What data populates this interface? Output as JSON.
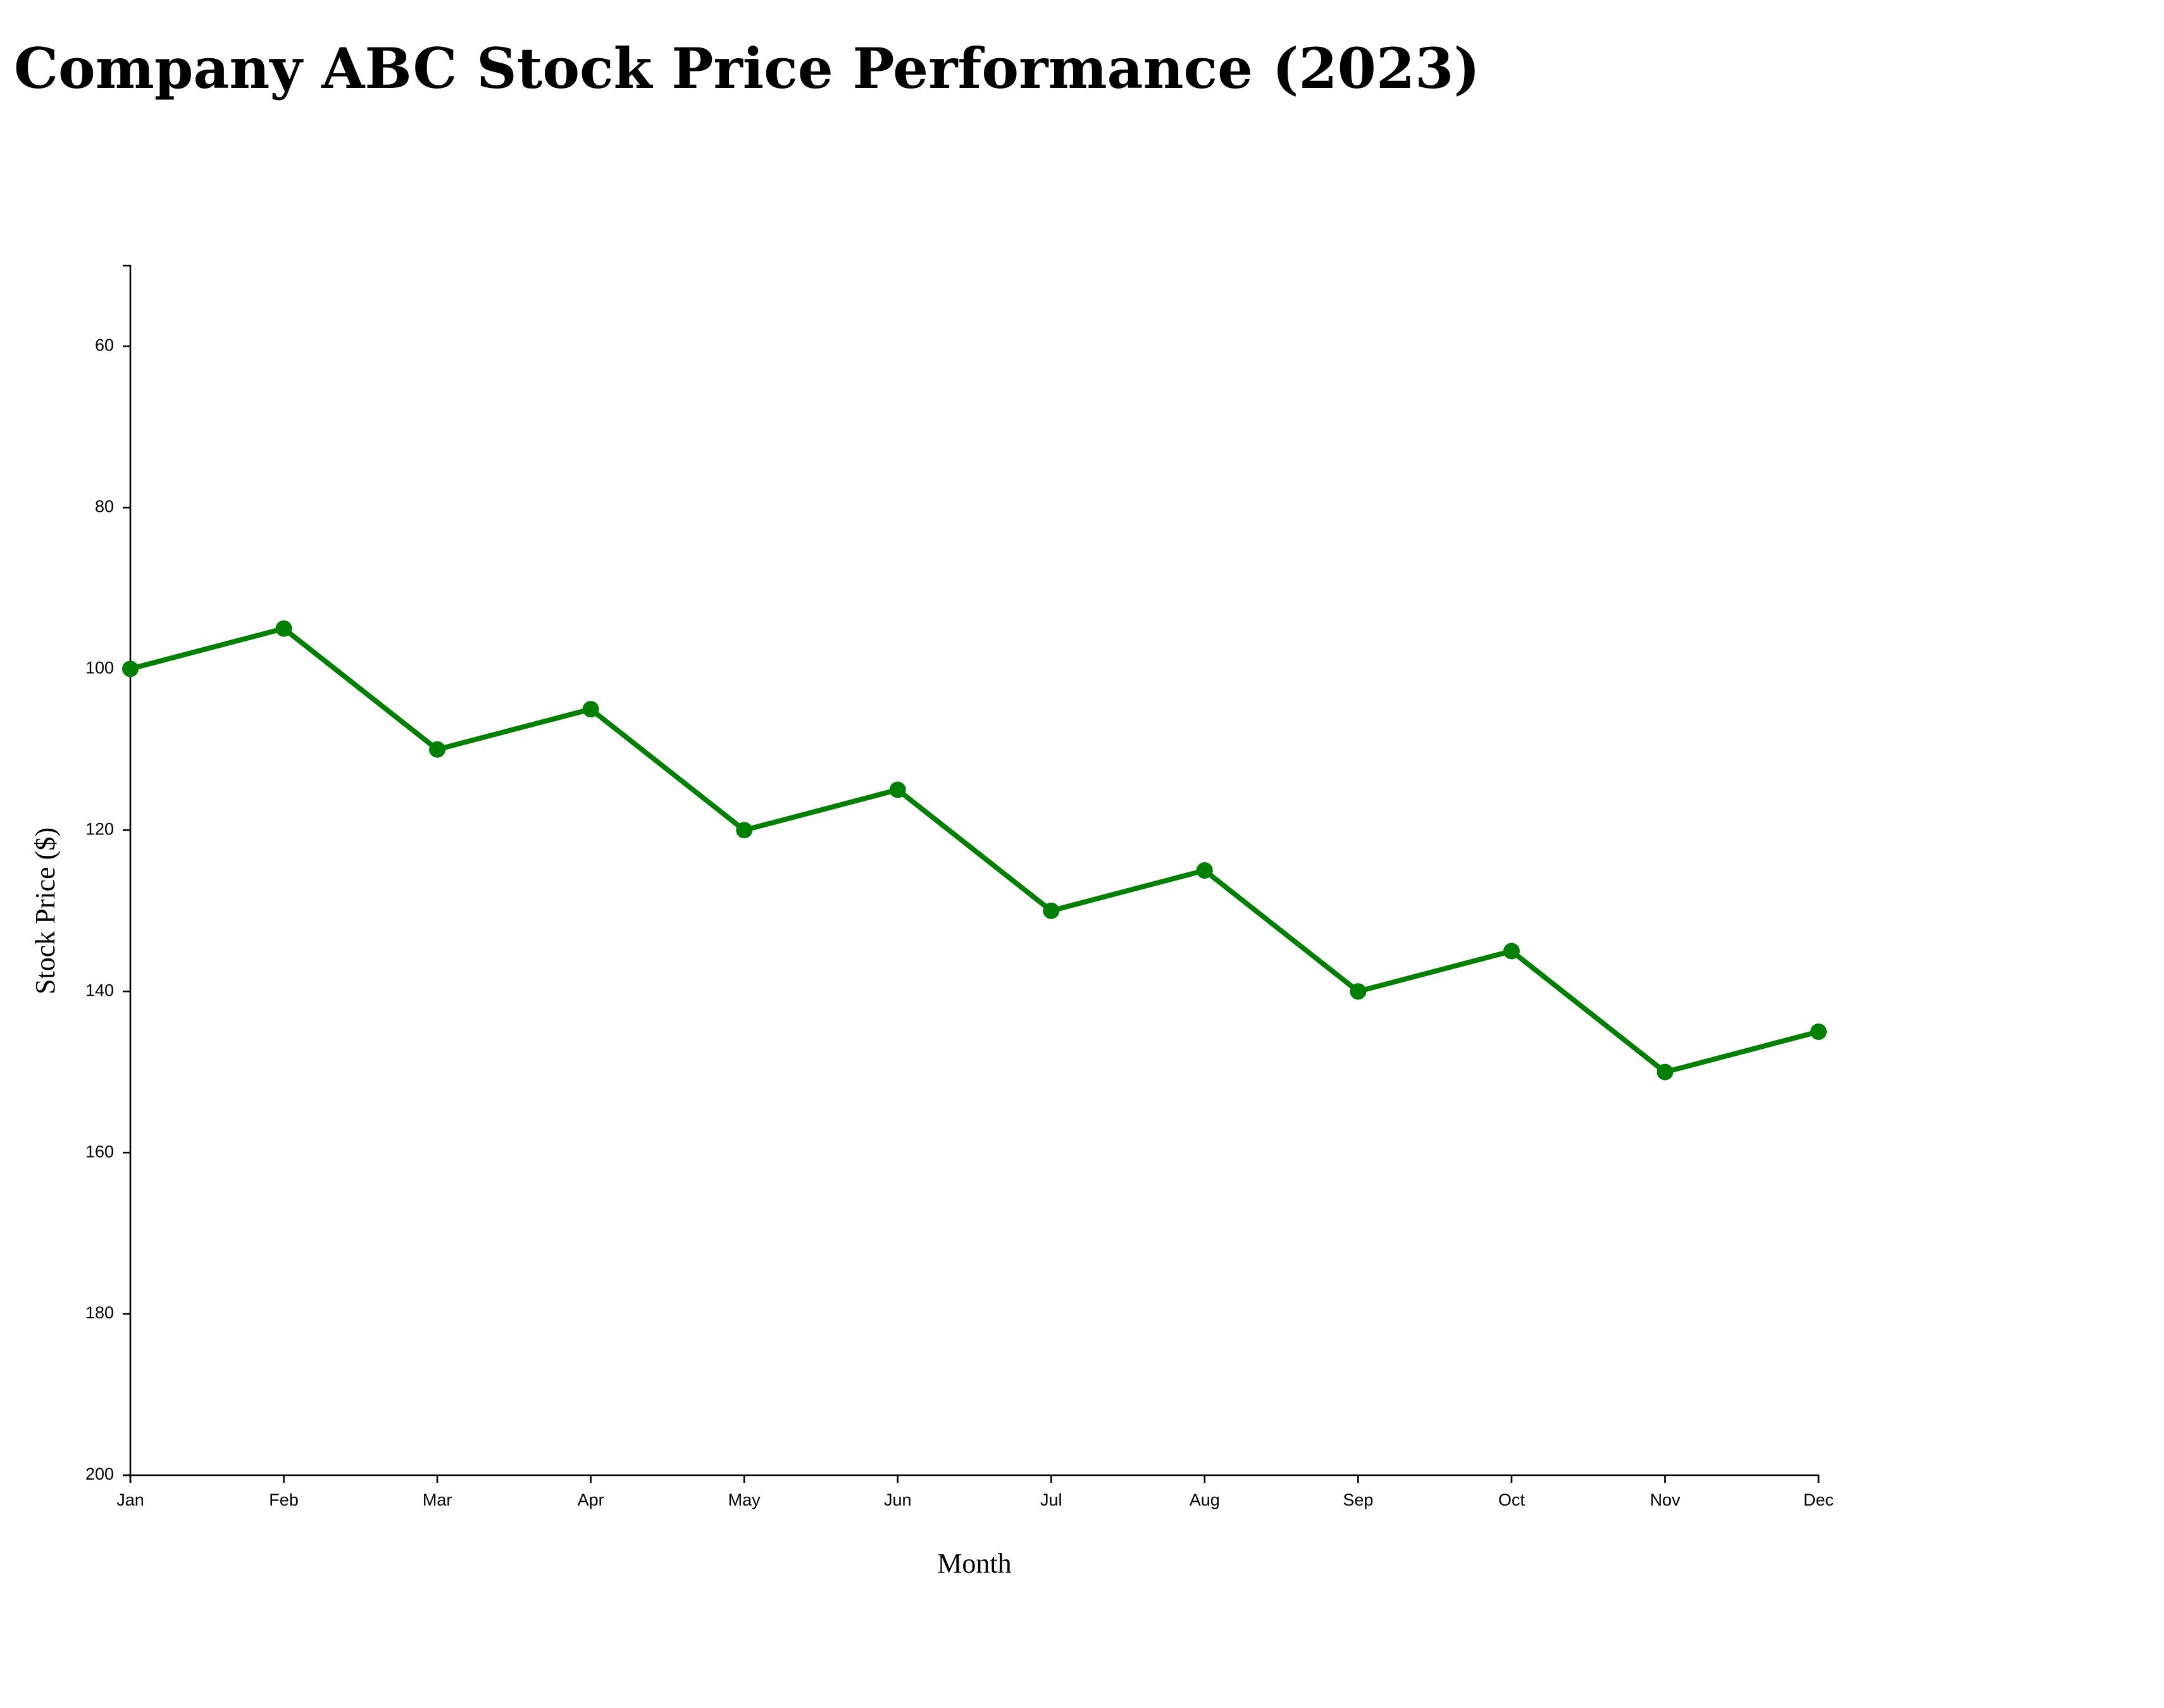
{
  "chart_data": {
    "type": "line",
    "title": "Company ABC Stock Price Performance (2023)",
    "xlabel": "Month",
    "ylabel": "Stock Price ($)",
    "categories": [
      "Jan",
      "Feb",
      "Mar",
      "Apr",
      "May",
      "Jun",
      "Jul",
      "Aug",
      "Sep",
      "Oct",
      "Nov",
      "Dec"
    ],
    "series": [
      {
        "values": [
          100,
          95,
          110,
          105,
          120,
          115,
          130,
          125,
          140,
          135,
          150,
          145
        ],
        "color": "#008000"
      }
    ],
    "ylim": [
      50,
      200
    ],
    "y_inverted": true,
    "y_ticks": [
      60,
      80,
      100,
      120,
      140,
      160,
      180,
      200
    ],
    "grid": false,
    "markers": true
  }
}
